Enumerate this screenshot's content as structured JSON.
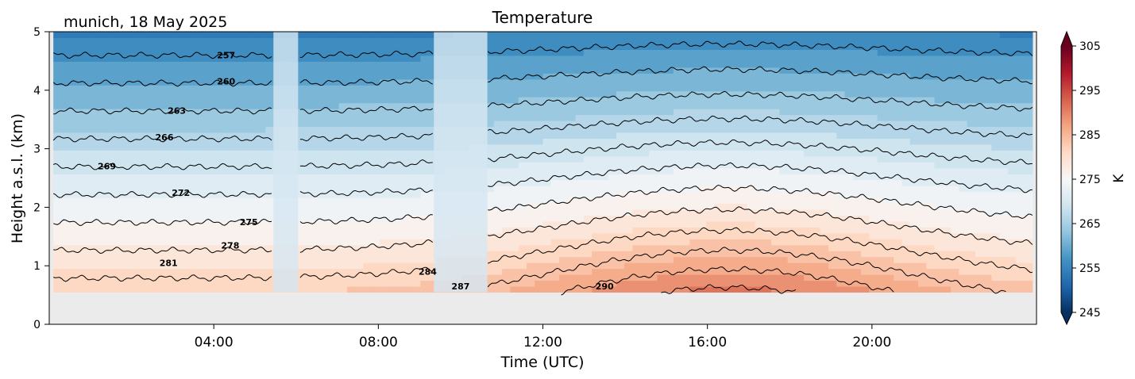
{
  "header": {
    "site_date": "munich, 18 May 2025"
  },
  "chart_data": {
    "type": "heatmap",
    "title": "Temperature",
    "xlabel": "Time (UTC)",
    "ylabel": "Height a.s.l. (km)",
    "xlim_hours": [
      0,
      24
    ],
    "ylim_km": [
      0,
      5
    ],
    "x_ticks": [
      {
        "hour": 4,
        "label": "04:00"
      },
      {
        "hour": 8,
        "label": "08:00"
      },
      {
        "hour": 12,
        "label": "12:00"
      },
      {
        "hour": 16,
        "label": "16:00"
      },
      {
        "hour": 20,
        "label": "20:00"
      }
    ],
    "y_ticks": [
      {
        "km": 0,
        "label": "0"
      },
      {
        "km": 1,
        "label": "1"
      },
      {
        "km": 2,
        "label": "2"
      },
      {
        "km": 3,
        "label": "3"
      },
      {
        "km": 4,
        "label": "4"
      },
      {
        "km": 5,
        "label": "5"
      }
    ],
    "lowest_valid_height_km": 0.55,
    "data_time_range_hours": [
      0.1,
      23.9
    ],
    "gaps_hours": [
      [
        5.45,
        6.05
      ],
      [
        9.35,
        10.65
      ]
    ],
    "colorbar": {
      "label": "K",
      "range": [
        245,
        305
      ],
      "ticks": [
        245,
        255,
        265,
        275,
        285,
        295,
        305
      ],
      "colormap": "RdBu_r",
      "extend": "both"
    },
    "contour_levels": [
      257,
      260,
      263,
      266,
      269,
      272,
      275,
      278,
      281,
      284,
      287,
      290
    ],
    "contour_labels": [
      {
        "value": 257,
        "hour": 4.3,
        "km": 4.6
      },
      {
        "value": 260,
        "hour": 4.3,
        "km": 4.15
      },
      {
        "value": 263,
        "hour": 3.1,
        "km": 3.65
      },
      {
        "value": 266,
        "hour": 2.8,
        "km": 3.2
      },
      {
        "value": 269,
        "hour": 1.4,
        "km": 2.7
      },
      {
        "value": 272,
        "hour": 3.2,
        "km": 2.25
      },
      {
        "value": 275,
        "hour": 4.85,
        "km": 1.75
      },
      {
        "value": 278,
        "hour": 4.4,
        "km": 1.35
      },
      {
        "value": 281,
        "hour": 2.9,
        "km": 1.05
      },
      {
        "value": 284,
        "hour": 9.2,
        "km": 0.9
      },
      {
        "value": 287,
        "hour": 10.0,
        "km": 0.65
      },
      {
        "value": 290,
        "hour": 13.5,
        "km": 0.65
      }
    ],
    "profile_model": {
      "surface_temperature_base": 282.5,
      "lapse_rate_k_per_km": 6.3,
      "diurnal_warming_max_k": 8.5,
      "diurnal_peak_hour": 16.5
    },
    "colors": {
      "background_invalid": "#ebebeb",
      "gap_overlay": "#d6e6f2",
      "contour_line": "#000000"
    }
  }
}
